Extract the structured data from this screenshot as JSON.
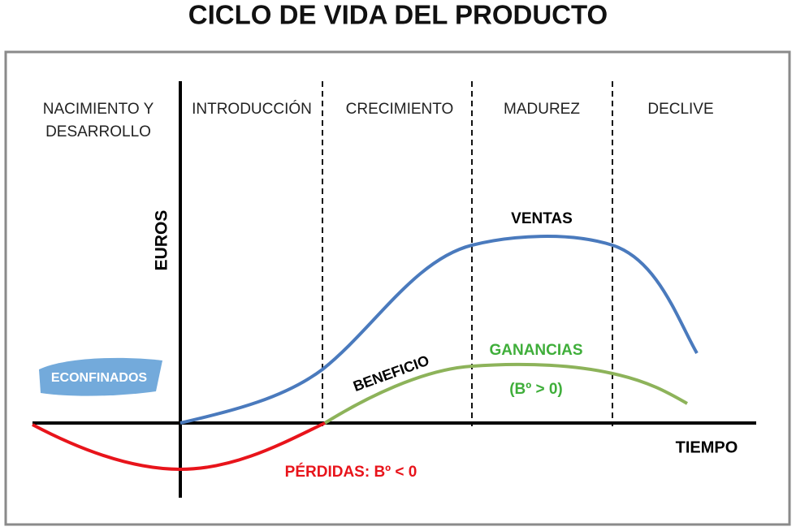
{
  "header": {
    "title": "CICLO DE VIDA DEL PRODUCTO"
  },
  "stages": [
    {
      "lines": [
        "NACIMIENTO Y",
        "DESARROLLO"
      ]
    },
    {
      "lines": [
        "INTRODUCCIÓN"
      ]
    },
    {
      "lines": [
        "CRECIMIENTO"
      ]
    },
    {
      "lines": [
        "MADUREZ"
      ]
    },
    {
      "lines": [
        "DECLIVE"
      ]
    }
  ],
  "axes": {
    "y_label": "EUROS",
    "x_label": "TIEMPO"
  },
  "curves": {
    "sales": "VENTAS",
    "profit_label": "BENEFICIO",
    "gains": "GANANCIAS",
    "gains_note": "(Bº > 0)",
    "losses": "PÉRDIDAS:  Bº < 0"
  },
  "watermark": "ECONFINADOS"
}
